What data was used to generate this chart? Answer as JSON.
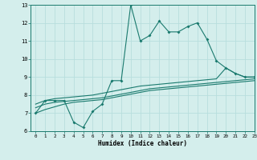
{
  "xlabel": "Humidex (Indice chaleur)",
  "x_values": [
    0,
    1,
    2,
    3,
    4,
    5,
    6,
    7,
    8,
    9,
    10,
    11,
    12,
    13,
    14,
    15,
    16,
    17,
    18,
    19,
    20,
    21,
    22,
    23
  ],
  "line1_y": [
    7.0,
    7.7,
    7.7,
    7.7,
    6.5,
    6.2,
    7.1,
    7.5,
    8.8,
    8.8,
    13.0,
    11.0,
    11.3,
    12.1,
    11.5,
    11.5,
    11.8,
    12.0,
    11.1,
    9.9,
    9.5,
    9.2,
    9.0,
    9.0
  ],
  "line2_y": [
    7.5,
    7.7,
    7.8,
    7.85,
    7.9,
    7.95,
    8.0,
    8.1,
    8.2,
    8.3,
    8.4,
    8.5,
    8.55,
    8.6,
    8.65,
    8.7,
    8.75,
    8.8,
    8.85,
    8.9,
    9.5,
    9.2,
    9.0,
    9.0
  ],
  "line3_y": [
    7.3,
    7.5,
    7.6,
    7.65,
    7.7,
    7.75,
    7.8,
    7.85,
    7.95,
    8.05,
    8.15,
    8.25,
    8.35,
    8.4,
    8.45,
    8.5,
    8.55,
    8.6,
    8.65,
    8.7,
    8.75,
    8.8,
    8.85,
    8.9
  ],
  "line4_y": [
    7.0,
    7.2,
    7.35,
    7.5,
    7.6,
    7.65,
    7.7,
    7.75,
    7.85,
    7.95,
    8.05,
    8.15,
    8.25,
    8.3,
    8.35,
    8.4,
    8.45,
    8.5,
    8.55,
    8.6,
    8.65,
    8.7,
    8.75,
    8.8
  ],
  "line_color": "#1a7a6e",
  "bg_color": "#d4eeec",
  "grid_color": "#b8dedd",
  "ylim": [
    6,
    13
  ],
  "xlim": [
    -0.5,
    23
  ],
  "yticks": [
    6,
    7,
    8,
    9,
    10,
    11,
    12,
    13
  ],
  "xticks": [
    0,
    1,
    2,
    3,
    4,
    5,
    6,
    7,
    8,
    9,
    10,
    11,
    12,
    13,
    14,
    15,
    16,
    17,
    18,
    19,
    20,
    21,
    22,
    23
  ]
}
